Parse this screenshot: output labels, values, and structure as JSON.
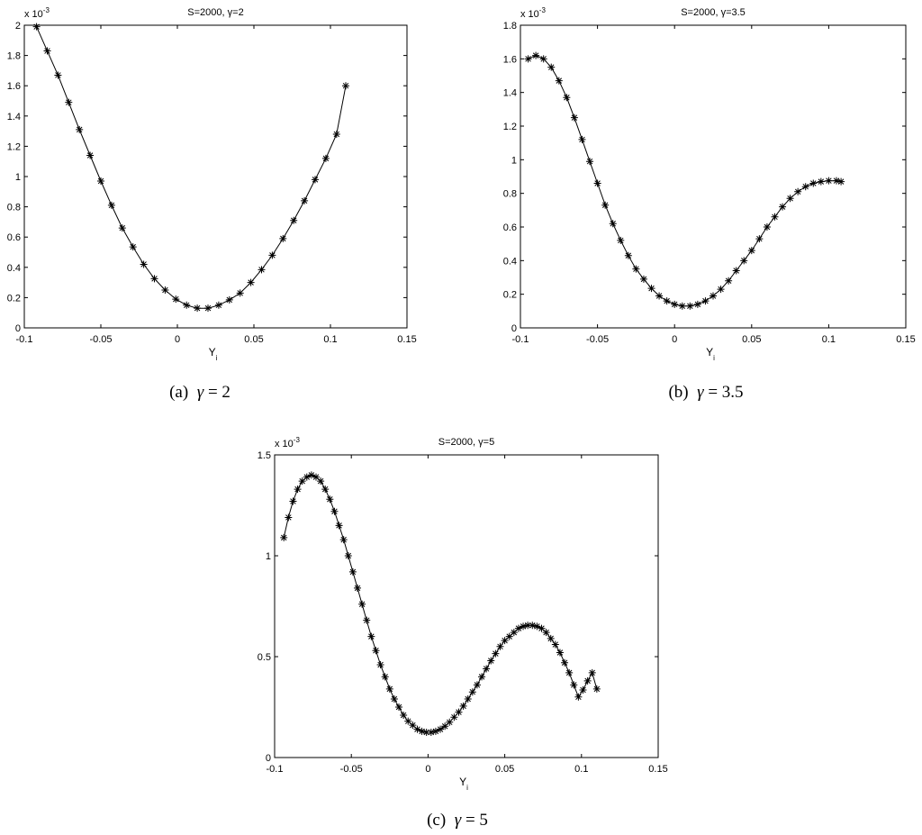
{
  "chart_data": [
    {
      "type": "line",
      "title": "S=2000,  γ=2",
      "xlabel": "Y",
      "xlabel_sub": "i",
      "y_multiplier": "x 10",
      "y_multiplier_exp": "-3",
      "xlim": [
        -0.1,
        0.15
      ],
      "ylim": [
        0,
        2
      ],
      "xticks": [
        -0.1,
        -0.05,
        0,
        0.05,
        0.1,
        0.15
      ],
      "xtick_labels": [
        "-0.1",
        "-0.05",
        "0",
        "0.05",
        "0.1",
        "0.15"
      ],
      "yticks": [
        0,
        0.2,
        0.4,
        0.6,
        0.8,
        1,
        1.2,
        1.4,
        1.6,
        1.8,
        2
      ],
      "ytick_labels": [
        "0",
        "0.2",
        "0.4",
        "0.6",
        "0.8",
        "1",
        "1.2",
        "1.4",
        "1.6",
        "1.8",
        "2"
      ],
      "marker": "asterisk",
      "grid": false,
      "series": [
        {
          "x": [
            -0.092,
            -0.085,
            -0.078,
            -0.071,
            -0.064,
            -0.057,
            -0.05,
            -0.043,
            -0.036,
            -0.029,
            -0.022,
            -0.015,
            -0.008,
            -0.001,
            0.006,
            0.013,
            0.02,
            0.027,
            0.034,
            0.041,
            0.048,
            0.055,
            0.062,
            0.069,
            0.076,
            0.083,
            0.09,
            0.097,
            0.104,
            0.11
          ],
          "y": [
            1.99,
            1.83,
            1.67,
            1.49,
            1.31,
            1.14,
            0.97,
            0.81,
            0.66,
            0.535,
            0.42,
            0.325,
            0.25,
            0.19,
            0.15,
            0.13,
            0.13,
            0.15,
            0.185,
            0.23,
            0.3,
            0.385,
            0.48,
            0.59,
            0.71,
            0.84,
            0.98,
            1.12,
            1.28,
            1.6
          ]
        }
      ],
      "caption_label": "(a)",
      "caption_symbol": "γ",
      "caption_rest": " = 2"
    },
    {
      "type": "line",
      "title": "S=2000,  γ=3.5",
      "xlabel": "Y",
      "xlabel_sub": "i",
      "y_multiplier": "x 10",
      "y_multiplier_exp": "-3",
      "xlim": [
        -0.1,
        0.15
      ],
      "ylim": [
        0,
        1.8
      ],
      "xticks": [
        -0.1,
        -0.05,
        0,
        0.05,
        0.1,
        0.15
      ],
      "xtick_labels": [
        "-0.1",
        "-0.05",
        "0",
        "0.05",
        "0.1",
        "0.15"
      ],
      "yticks": [
        0,
        0.2,
        0.4,
        0.6,
        0.8,
        1,
        1.2,
        1.4,
        1.6,
        1.8
      ],
      "ytick_labels": [
        "0",
        "0.2",
        "0.4",
        "0.6",
        "0.8",
        "1",
        "1.2",
        "1.4",
        "1.6",
        "1.8"
      ],
      "marker": "asterisk",
      "grid": false,
      "series": [
        {
          "x": [
            -0.095,
            -0.09,
            -0.085,
            -0.08,
            -0.075,
            -0.07,
            -0.065,
            -0.06,
            -0.055,
            -0.05,
            -0.045,
            -0.04,
            -0.035,
            -0.03,
            -0.025,
            -0.02,
            -0.015,
            -0.01,
            -0.005,
            0.0,
            0.005,
            0.01,
            0.015,
            0.02,
            0.025,
            0.03,
            0.035,
            0.04,
            0.045,
            0.05,
            0.055,
            0.06,
            0.065,
            0.07,
            0.075,
            0.08,
            0.085,
            0.09,
            0.095,
            0.1,
            0.105,
            0.108
          ],
          "y": [
            1.6,
            1.62,
            1.6,
            1.55,
            1.47,
            1.37,
            1.25,
            1.12,
            0.99,
            0.86,
            0.73,
            0.62,
            0.52,
            0.43,
            0.35,
            0.29,
            0.235,
            0.19,
            0.16,
            0.14,
            0.13,
            0.13,
            0.14,
            0.16,
            0.19,
            0.23,
            0.28,
            0.34,
            0.4,
            0.46,
            0.53,
            0.6,
            0.66,
            0.72,
            0.77,
            0.81,
            0.84,
            0.86,
            0.87,
            0.875,
            0.875,
            0.87
          ]
        }
      ],
      "caption_label": "(b)",
      "caption_symbol": "γ",
      "caption_rest": " = 3.5"
    },
    {
      "type": "line",
      "title": "S=2000,  γ=5",
      "xlabel": "Y",
      "xlabel_sub": "i",
      "y_multiplier": "x 10",
      "y_multiplier_exp": "-3",
      "xlim": [
        -0.1,
        0.15
      ],
      "ylim": [
        0,
        1.5
      ],
      "xticks": [
        -0.1,
        -0.05,
        0,
        0.05,
        0.1,
        0.15
      ],
      "xtick_labels": [
        "-0.1",
        "-0.05",
        "0",
        "0.05",
        "0.1",
        "0.15"
      ],
      "yticks": [
        0,
        0.5,
        1,
        1.5
      ],
      "ytick_labels": [
        "0",
        "0.5",
        "1",
        "1.5"
      ],
      "marker": "asterisk",
      "grid": false,
      "series": [
        {
          "x": [
            -0.094,
            -0.091,
            -0.088,
            -0.085,
            -0.082,
            -0.079,
            -0.076,
            -0.073,
            -0.07,
            -0.067,
            -0.064,
            -0.061,
            -0.058,
            -0.055,
            -0.052,
            -0.049,
            -0.046,
            -0.043,
            -0.04,
            -0.037,
            -0.034,
            -0.031,
            -0.028,
            -0.025,
            -0.022,
            -0.019,
            -0.016,
            -0.013,
            -0.01,
            -0.007,
            -0.004,
            -0.001,
            0.002,
            0.005,
            0.008,
            0.011,
            0.014,
            0.017,
            0.02,
            0.023,
            0.026,
            0.029,
            0.032,
            0.035,
            0.038,
            0.041,
            0.044,
            0.047,
            0.05,
            0.053,
            0.056,
            0.059,
            0.062,
            0.065,
            0.068,
            0.071,
            0.074,
            0.077,
            0.08,
            0.083,
            0.086,
            0.089,
            0.092,
            0.095,
            0.098,
            0.101,
            0.104,
            0.107,
            0.11
          ],
          "y": [
            1.09,
            1.19,
            1.27,
            1.33,
            1.37,
            1.39,
            1.4,
            1.39,
            1.37,
            1.33,
            1.28,
            1.22,
            1.15,
            1.08,
            1.0,
            0.92,
            0.84,
            0.76,
            0.68,
            0.6,
            0.53,
            0.46,
            0.4,
            0.34,
            0.29,
            0.25,
            0.21,
            0.18,
            0.16,
            0.14,
            0.13,
            0.125,
            0.125,
            0.13,
            0.14,
            0.155,
            0.175,
            0.2,
            0.225,
            0.255,
            0.29,
            0.325,
            0.36,
            0.4,
            0.44,
            0.48,
            0.515,
            0.55,
            0.58,
            0.6,
            0.62,
            0.64,
            0.65,
            0.655,
            0.655,
            0.65,
            0.64,
            0.62,
            0.59,
            0.56,
            0.52,
            0.47,
            0.42,
            0.36,
            0.3,
            0.335,
            0.38,
            0.42,
            0.34
          ]
        }
      ],
      "caption_label": "(c)",
      "caption_symbol": "γ",
      "caption_rest": " = 5"
    }
  ]
}
